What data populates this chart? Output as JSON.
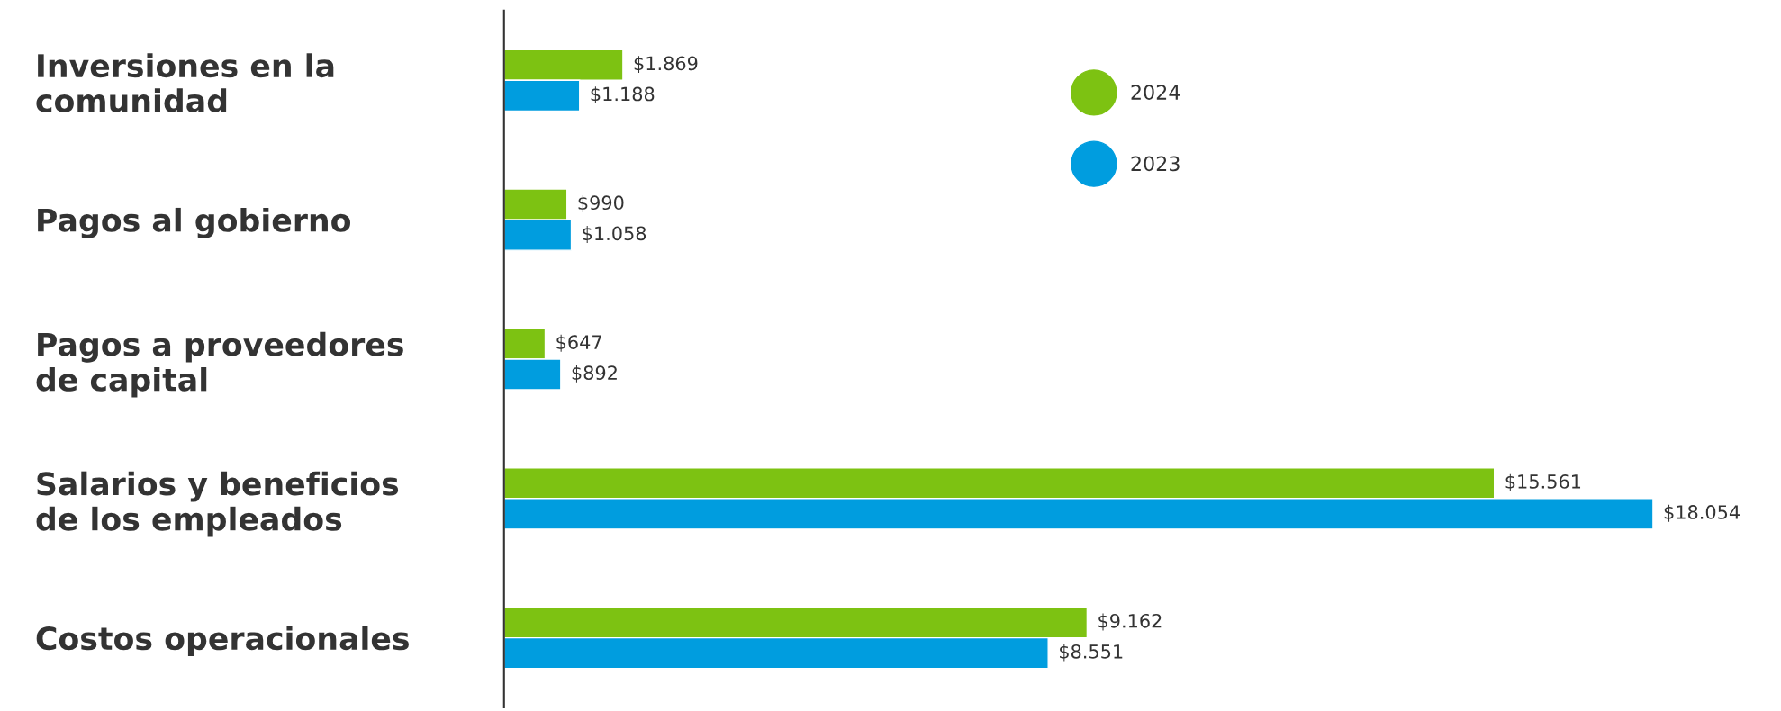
{
  "chart_data": {
    "type": "bar",
    "orientation": "horizontal",
    "categories": [
      "Inversiones en la\ncomunidad",
      "Pagos al gobierno",
      "Pagos a proveedores\nde capital",
      "Salarios y beneficios\nde los empleados",
      "Costos operacionales"
    ],
    "series": [
      {
        "name": "2024",
        "color": "#7dc212",
        "values": [
          1869,
          990,
          647,
          15561,
          9162
        ],
        "value_labels": [
          "$1.869",
          "$990",
          "$647",
          "$15.561",
          "$9.162"
        ]
      },
      {
        "name": "2023",
        "color": "#009ddf",
        "values": [
          1188,
          1058,
          892,
          18054,
          8551
        ],
        "value_labels": [
          "$1.188",
          "$1.058",
          "$892",
          "$18.054",
          "$8.551"
        ]
      }
    ],
    "legend": "top"
  }
}
